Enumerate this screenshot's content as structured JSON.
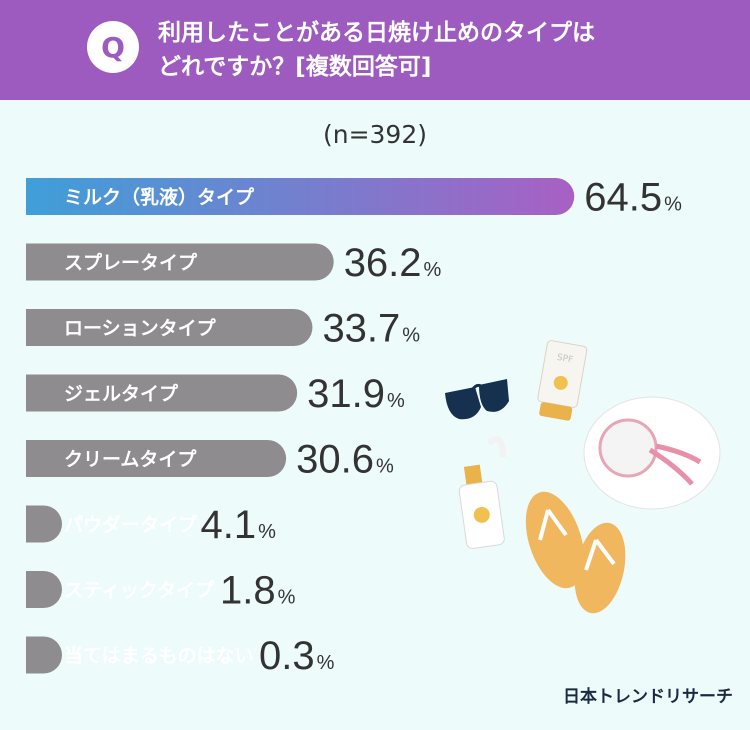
{
  "header": {
    "q_mark": "Q",
    "question_line1": "利用したことがある日焼け止めのタイプは",
    "question_line2": "どれですか？[複数回答可]"
  },
  "subtitle": "(n=392)",
  "chart_data": {
    "type": "bar",
    "orientation": "horizontal",
    "categories": [
      "ミルク（乳液）タイプ",
      "スプレータイプ",
      "ローションタイプ",
      "ジェルタイプ",
      "クリームタイプ",
      "パウダータイプ",
      "スティックタイプ",
      "当てはまるものはない"
    ],
    "values": [
      64.5,
      36.2,
      33.7,
      31.9,
      30.6,
      4.1,
      1.8,
      0.3
    ],
    "value_labels": [
      "64.5",
      "36.2",
      "33.7",
      "31.9",
      "30.6",
      "4.1",
      "1.8",
      "0.3"
    ],
    "unit": "%",
    "colors": {
      "highlight_start": "#3f9fd8",
      "highlight_end": "#a860c4",
      "bar": "#8e8c8e",
      "label_text": "#ffffff",
      "value_text": "#333333"
    }
  },
  "logo": "日本トレンドリサーチ",
  "decorations": [
    "sunglasses-icon",
    "sunscreen-tube-icon",
    "sun-hat-icon",
    "sunscreen-bottle-icon",
    "flip-flops-icon"
  ]
}
